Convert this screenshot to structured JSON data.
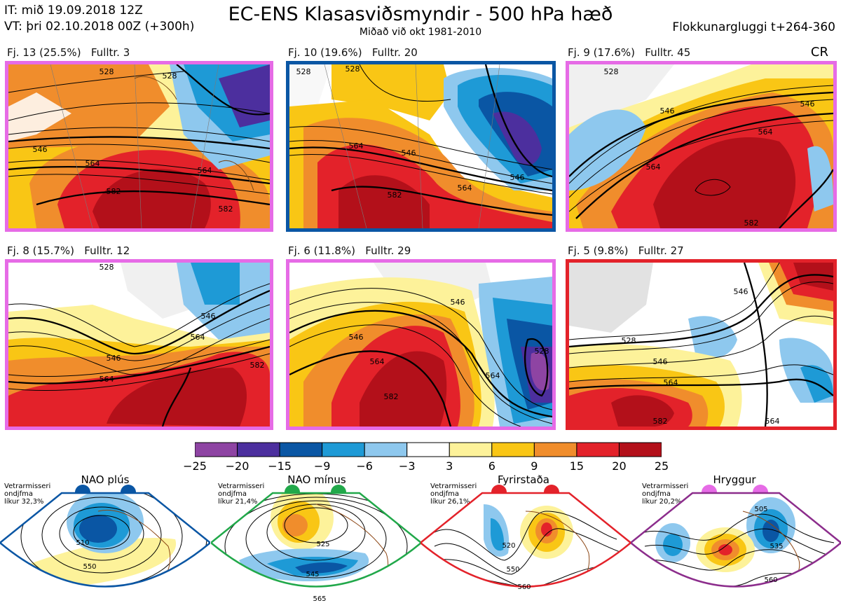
{
  "header": {
    "it": "IT: mið 19.09.2018 12Z",
    "vt": "VT: þri 02.10.2018 00Z  (+300h)",
    "title": "EC-ENS Klasasviðsmyndir - 500 hPa hæð",
    "subtitle": "Miðað við okt 1981-2010",
    "window": "Flokkunargluggi t+264-360",
    "cr": "CR"
  },
  "colors": {
    "pink": "#e66be6",
    "blue": "#0a56a4",
    "red": "#e3222a",
    "green": "#21a84a",
    "purple": "#8c2d8c"
  },
  "clusters": [
    {
      "label": "Fj. 13 (25.5%)   Fulltr. 3",
      "border": "pink",
      "contours": [
        "528",
        "528",
        "546",
        "564",
        "564",
        "582",
        "582"
      ]
    },
    {
      "label": "Fj. 10 (19.6%)   Fulltr. 20",
      "border": "blue",
      "contours": [
        "528",
        "528",
        "546",
        "564",
        "546",
        "582",
        "564"
      ]
    },
    {
      "label": "Fj. 9 (17.6%)   Fulltr. 45",
      "border": "pink",
      "contours": [
        "528",
        "546",
        "546",
        "564",
        "564",
        "582"
      ]
    },
    {
      "label": "Fj. 8 (15.7%)   Fulltr. 12",
      "border": "pink",
      "contours": [
        "528",
        "546",
        "546",
        "564",
        "564",
        "582"
      ]
    },
    {
      "label": "Fj. 6 (11.8%)   Fulltr. 29",
      "border": "pink",
      "contours": [
        "546",
        "546",
        "564",
        "564",
        "582",
        "528"
      ]
    },
    {
      "label": "Fj. 5 (9.8%)   Fulltr. 27",
      "border": "red",
      "contours": [
        "528",
        "546",
        "546",
        "564",
        "582",
        "564"
      ]
    }
  ],
  "colorbar": {
    "ticks": [
      "−25",
      "−20",
      "−15",
      "−9",
      "−6",
      "−3",
      "3",
      "6",
      "9",
      "15",
      "20",
      "25"
    ],
    "colors": [
      "#8e44a3",
      "#4c2f9e",
      "#0a56a4",
      "#1e9ad6",
      "#8ec8ee",
      "#ffffff",
      "#fdf29a",
      "#f9c615",
      "#f08d2c",
      "#e3222a",
      "#b3101a"
    ]
  },
  "regimes": [
    {
      "name": "NAO plús",
      "stats": [
        "Vetrarmisseri",
        "ondjfma",
        "líkur 32,3%"
      ],
      "color": "blue",
      "labels": [
        "510",
        "550"
      ]
    },
    {
      "name": "NAO mínus",
      "stats": [
        "Vetrarmisseri",
        "ondjfma",
        "líkur 21,4%"
      ],
      "color": "green",
      "labels": [
        "525",
        "545",
        "565"
      ]
    },
    {
      "name": "Fyrirstaða",
      "stats": [
        "Vetrarmisseri",
        "ondjfma",
        "líkur 26,1%"
      ],
      "color": "red",
      "labels": [
        "520",
        "550",
        "560"
      ]
    },
    {
      "name": "Hryggur",
      "stats": [
        "Vetrarmisseri",
        "ondjfma",
        "líkur 20,2%"
      ],
      "color": "purple",
      "labels": [
        "505",
        "535",
        "560"
      ]
    }
  ]
}
